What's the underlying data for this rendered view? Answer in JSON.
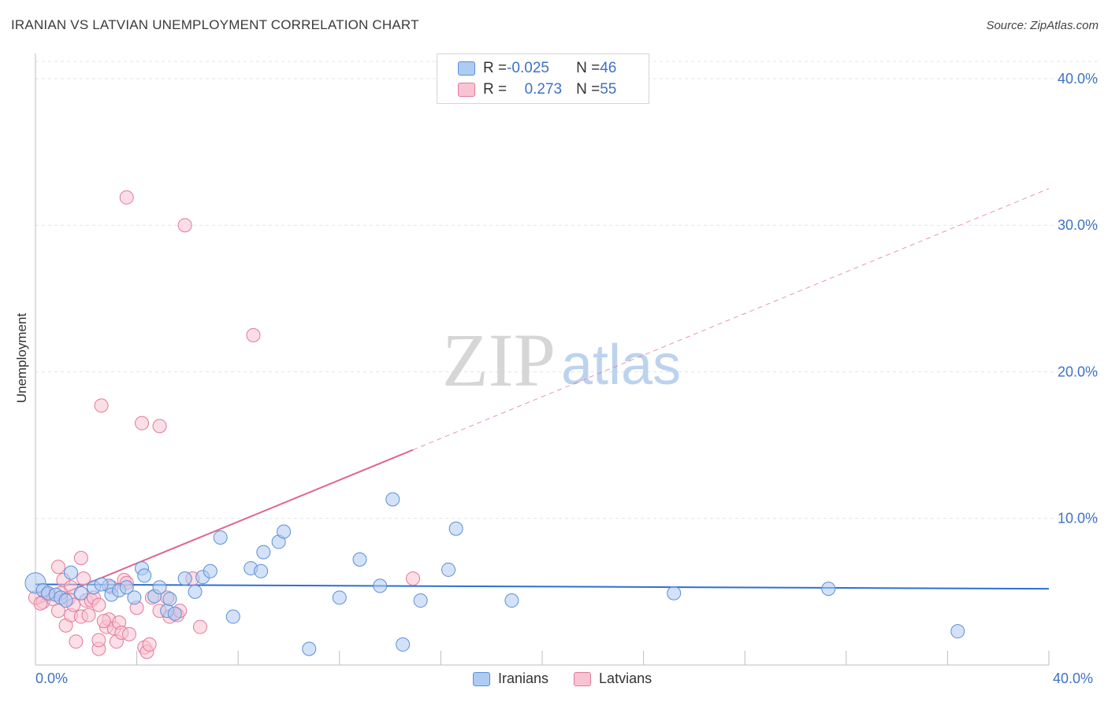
{
  "title": "IRANIAN VS LATVIAN UNEMPLOYMENT CORRELATION CHART",
  "source": "Source: ZipAtlas.com",
  "watermark": {
    "zip": "ZIP",
    "atlas": "atlas"
  },
  "legend": {
    "rows": [
      {
        "r_label": "R = ",
        "r_value": "-0.025",
        "n_label": "N = ",
        "n_value": "46"
      },
      {
        "r_label": "R = ",
        "r_value": "0.273",
        "n_label": "N = ",
        "n_value": "55"
      }
    ]
  },
  "bottom_legend": [
    "Iranians",
    "Latvians"
  ],
  "axis": {
    "x_min_label": "0.0%",
    "x_max_label": "40.0%"
  },
  "colors": {
    "iranians_fill": "#aecbf2",
    "iranians_stroke": "#5b8fd6",
    "iranians_line": "#2f6fd0",
    "latvians_fill": "#f8c3d2",
    "latvians_stroke": "#e2799a",
    "latvians_line": "#e0668f",
    "tick_text": "#3d72c4"
  },
  "chart_data": {
    "type": "scatter",
    "title": "IRANIAN VS LATVIAN UNEMPLOYMENT CORRELATION CHART",
    "xlabel": "",
    "ylabel": "Unemployment",
    "xlim": [
      0,
      40
    ],
    "ylim": [
      0,
      41.5
    ],
    "y_ticks": [
      10,
      20,
      30,
      40
    ],
    "y_tick_labels": [
      "10.0%",
      "20.0%",
      "30.0%",
      "40.0%"
    ],
    "grid": true,
    "series": [
      {
        "name": "Iranians",
        "trend": {
          "x0": 0,
          "y0": 5.5,
          "x1": 40,
          "y1": 5.2
        },
        "points": [
          [
            0,
            5.6
          ],
          [
            0.3,
            5.1
          ],
          [
            0.5,
            4.9
          ],
          [
            0.8,
            4.8
          ],
          [
            1.0,
            4.6
          ],
          [
            1.4,
            6.3
          ],
          [
            1.8,
            4.9
          ],
          [
            2.3,
            5.3
          ],
          [
            2.9,
            5.4
          ],
          [
            3.0,
            4.8
          ],
          [
            3.3,
            5.1
          ],
          [
            3.6,
            5.3
          ],
          [
            3.9,
            4.6
          ],
          [
            4.2,
            6.6
          ],
          [
            4.3,
            6.1
          ],
          [
            4.7,
            4.7
          ],
          [
            4.9,
            5.3
          ],
          [
            5.2,
            3.7
          ],
          [
            5.3,
            4.5
          ],
          [
            5.5,
            3.5
          ],
          [
            5.9,
            5.9
          ],
          [
            6.3,
            5.0
          ],
          [
            6.6,
            6.0
          ],
          [
            6.9,
            6.4
          ],
          [
            7.3,
            8.7
          ],
          [
            7.8,
            3.3
          ],
          [
            8.5,
            6.6
          ],
          [
            8.9,
            6.4
          ],
          [
            9.0,
            7.7
          ],
          [
            9.6,
            8.4
          ],
          [
            9.8,
            9.1
          ],
          [
            10.8,
            1.1
          ],
          [
            12.0,
            4.6
          ],
          [
            12.8,
            7.2
          ],
          [
            13.6,
            5.4
          ],
          [
            14.1,
            11.3
          ],
          [
            14.5,
            1.4
          ],
          [
            15.2,
            4.4
          ],
          [
            16.3,
            6.5
          ],
          [
            16.6,
            9.3
          ],
          [
            18.8,
            4.4
          ],
          [
            25.2,
            4.9
          ],
          [
            31.3,
            5.2
          ],
          [
            36.4,
            2.3
          ],
          [
            1.2,
            4.4
          ],
          [
            2.6,
            5.5
          ]
        ]
      },
      {
        "name": "Latvians",
        "trend": {
          "x0": 0,
          "y0": 4.1,
          "x1": 40,
          "y1": 32.5,
          "solid_until_x": 14.9
        },
        "points": [
          [
            0,
            4.6
          ],
          [
            0.3,
            4.3
          ],
          [
            0.5,
            4.8
          ],
          [
            0.7,
            4.5
          ],
          [
            0.9,
            3.7
          ],
          [
            0.9,
            6.7
          ],
          [
            1.1,
            5.8
          ],
          [
            1.2,
            2.7
          ],
          [
            1.3,
            4.5
          ],
          [
            1.4,
            5.3
          ],
          [
            1.4,
            3.4
          ],
          [
            1.5,
            4.1
          ],
          [
            1.6,
            1.6
          ],
          [
            1.8,
            3.3
          ],
          [
            1.8,
            7.3
          ],
          [
            1.9,
            5.9
          ],
          [
            2.0,
            4.4
          ],
          [
            2.1,
            3.4
          ],
          [
            2.2,
            4.4
          ],
          [
            2.3,
            4.6
          ],
          [
            2.5,
            1.1
          ],
          [
            2.5,
            1.7
          ],
          [
            2.5,
            4.1
          ],
          [
            2.6,
            17.7
          ],
          [
            2.8,
            2.6
          ],
          [
            2.9,
            3.1
          ],
          [
            3.0,
            5.3
          ],
          [
            3.1,
            2.5
          ],
          [
            3.2,
            1.6
          ],
          [
            3.3,
            2.9
          ],
          [
            3.4,
            2.2
          ],
          [
            3.5,
            5.8
          ],
          [
            3.6,
            5.6
          ],
          [
            3.6,
            31.9
          ],
          [
            3.7,
            2.1
          ],
          [
            4.0,
            3.9
          ],
          [
            4.2,
            16.5
          ],
          [
            4.3,
            1.2
          ],
          [
            4.4,
            0.9
          ],
          [
            4.5,
            1.4
          ],
          [
            4.6,
            4.6
          ],
          [
            4.9,
            3.7
          ],
          [
            4.9,
            16.3
          ],
          [
            5.2,
            4.6
          ],
          [
            5.3,
            3.3
          ],
          [
            5.6,
            3.4
          ],
          [
            5.7,
            3.7
          ],
          [
            5.9,
            30.0
          ],
          [
            6.2,
            5.9
          ],
          [
            6.5,
            2.6
          ],
          [
            8.6,
            22.5
          ],
          [
            14.9,
            5.9
          ],
          [
            0.2,
            4.2
          ],
          [
            1.0,
            4.9
          ],
          [
            2.7,
            3.0
          ]
        ]
      }
    ]
  }
}
